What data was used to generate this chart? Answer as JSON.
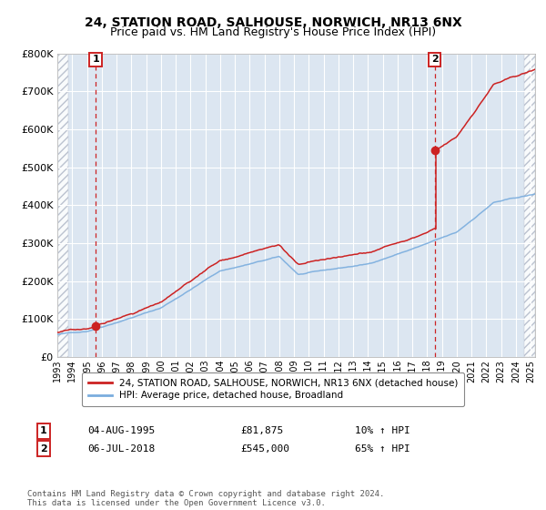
{
  "title": "24, STATION ROAD, SALHOUSE, NORWICH, NR13 6NX",
  "subtitle": "Price paid vs. HM Land Registry's House Price Index (HPI)",
  "legend_line1": "24, STATION ROAD, SALHOUSE, NORWICH, NR13 6NX (detached house)",
  "legend_line2": "HPI: Average price, detached house, Broadland",
  "label1_date": "04-AUG-1995",
  "label1_price": "£81,875",
  "label1_hpi": "10% ↑ HPI",
  "label2_date": "06-JUL-2018",
  "label2_price": "£545,000",
  "label2_hpi": "65% ↑ HPI",
  "footer": "Contains HM Land Registry data © Crown copyright and database right 2024.\nThis data is licensed under the Open Government Licence v3.0.",
  "sale1_year": 1995.59,
  "sale1_value": 81875,
  "sale2_year": 2018.51,
  "sale2_value": 545000,
  "hpi_color": "#7aadde",
  "price_color": "#cc2222",
  "bg_color": "#dce6f1",
  "fig_bg": "#ffffff",
  "ylim": [
    0,
    800000
  ],
  "xlim_start": 1993.0,
  "xlim_end": 2025.3,
  "hatch_left_end": 1993.75,
  "hatch_right_start": 2024.58
}
